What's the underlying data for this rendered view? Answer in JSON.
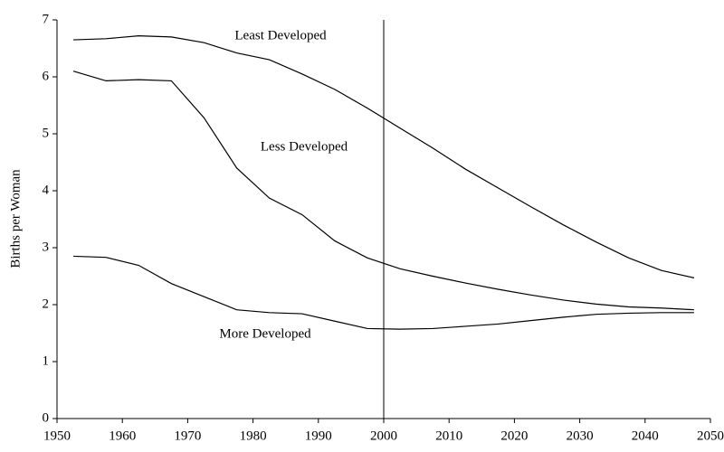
{
  "chart_data": {
    "type": "line",
    "ylabel": "Births per Woman",
    "x": [
      1952.5,
      1957.5,
      1962.5,
      1967.5,
      1972.5,
      1977.5,
      1982.5,
      1987.5,
      1992.5,
      1997.5,
      2002.5,
      2007.5,
      2012.5,
      2017.5,
      2022.5,
      2027.5,
      2032.5,
      2037.5,
      2042.5,
      2047.5
    ],
    "series": [
      {
        "name": "Least Developed",
        "color": "#000000",
        "values": [
          6.65,
          6.67,
          6.72,
          6.7,
          6.6,
          6.42,
          6.3,
          6.05,
          5.78,
          5.45,
          5.1,
          4.75,
          4.38,
          4.05,
          3.72,
          3.4,
          3.1,
          2.82,
          2.6,
          2.47
        ]
      },
      {
        "name": "Less Developed",
        "color": "#000000",
        "values": [
          6.1,
          5.93,
          5.95,
          5.93,
          5.28,
          4.4,
          3.87,
          3.58,
          3.12,
          2.82,
          2.63,
          2.5,
          2.38,
          2.27,
          2.17,
          2.08,
          2.01,
          1.96,
          1.94,
          1.91
        ]
      },
      {
        "name": "More Developed",
        "color": "#000000",
        "values": [
          2.85,
          2.83,
          2.69,
          2.37,
          2.14,
          1.91,
          1.86,
          1.84,
          1.71,
          1.58,
          1.57,
          1.58,
          1.62,
          1.66,
          1.72,
          1.78,
          1.83,
          1.85,
          1.86,
          1.86
        ]
      }
    ],
    "xlim": [
      1950,
      2050
    ],
    "xticks": [
      1950,
      1960,
      1970,
      1980,
      1990,
      2000,
      2010,
      2020,
      2030,
      2040,
      2050
    ],
    "ylim": [
      0,
      7
    ],
    "yticks": [
      0,
      1,
      2,
      3,
      4,
      5,
      6,
      7
    ],
    "vline": 2000,
    "grid": false
  }
}
